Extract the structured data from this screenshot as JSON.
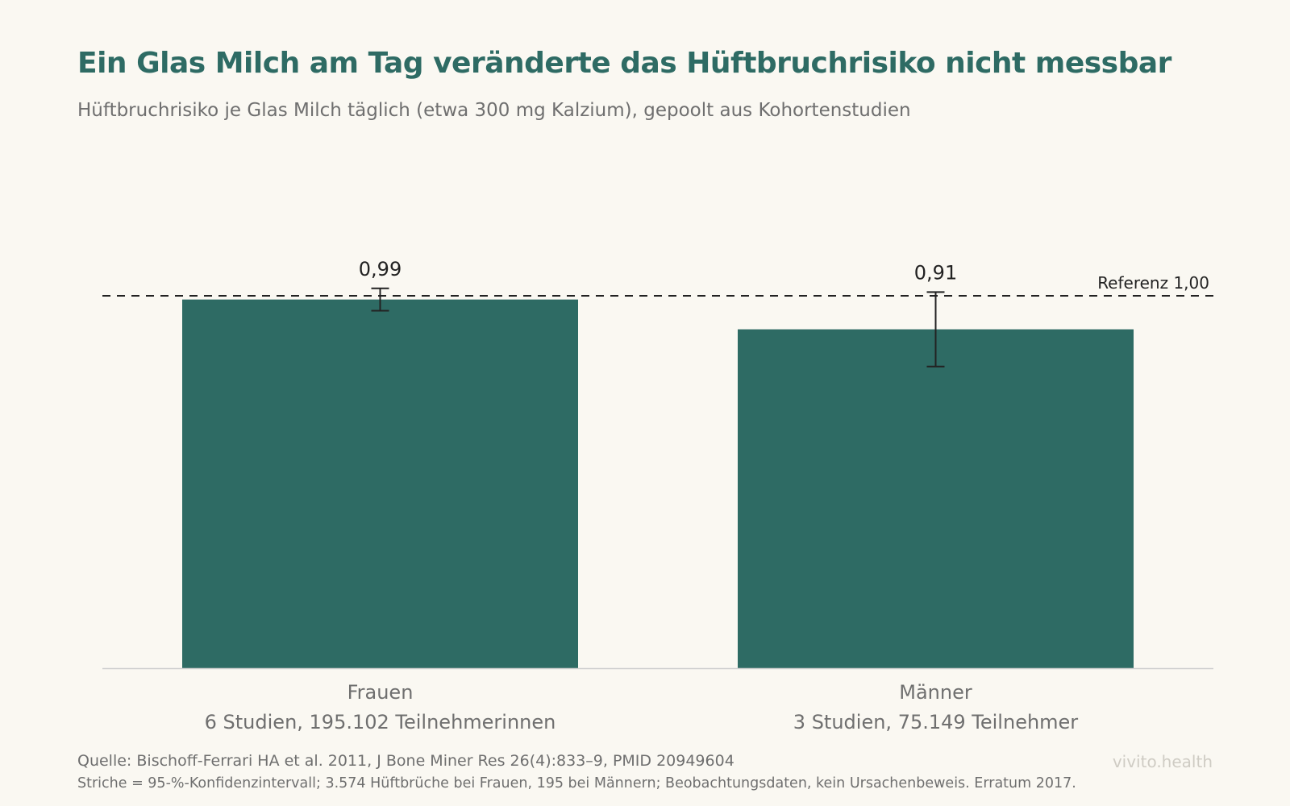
{
  "header": {
    "title": "Ein Glas Milch am Tag veränderte das Hüftbruchrisiko nicht messbar",
    "subtitle": "Hüftbruchrisiko je Glas Milch täglich (etwa 300 mg Kalzium), gepoolt aus Kohortenstudien"
  },
  "chart_data": {
    "type": "bar",
    "title": "Ein Glas Milch am Tag veränderte das Hüftbruchrisiko nicht messbar",
    "subtitle": "Hüftbruchrisiko je Glas Milch täglich (etwa 300 mg Kalzium), gepoolt aus Kohortenstudien",
    "xlabel": "",
    "ylabel": "",
    "ylim": [
      0,
      1.0
    ],
    "grid": false,
    "bar_color": "#2e6b64",
    "categories": [
      "Frauen",
      "Männer"
    ],
    "category_sublabels": [
      "6 Studien, 195.102 Teilnehmerinnen",
      "3 Studien, 75.149 Teilnehmer"
    ],
    "values": [
      0.99,
      0.91
    ],
    "value_labels": [
      "0,99",
      "0,91"
    ],
    "ci_lower": [
      0.96,
      0.81
    ],
    "ci_upper": [
      1.02,
      1.01
    ],
    "reference": {
      "value": 1.0,
      "label": "Referenz 1,00",
      "style": "dashed"
    }
  },
  "footer": {
    "source": "Quelle: Bischoff-Ferrari HA et al. 2011, J Bone Miner Res 26(4):833–9, PMID 20949604",
    "note": "Striche = 95-%-Konfidenzintervall; 3.574 Hüftbrüche bei Frauen, 195 bei Männern; Beobachtungsdaten, kein Ursachenbeweis. Erratum 2017.",
    "brand": "vivito.health"
  }
}
